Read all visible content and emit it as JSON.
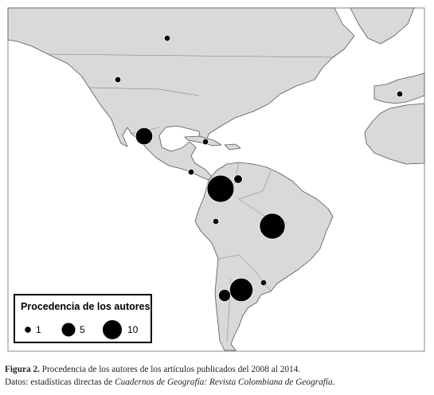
{
  "map": {
    "bubble_values": [
      1,
      1,
      1,
      8,
      1,
      1,
      20,
      2,
      1,
      18,
      15,
      4,
      1
    ],
    "legend": {
      "title": "Procedencia de los autores",
      "items": [
        1,
        5,
        10
      ]
    }
  },
  "caption": {
    "label": "Figura 2.",
    "text": "Procedencia de los autores de los artículos publicados del 2008 al 2014.",
    "source_prefix": "Datos: estadísticas directas de",
    "source_title": "Cuadernos de Geografía: Revista Colombiana de Geografía",
    "source_suffix": "."
  }
}
